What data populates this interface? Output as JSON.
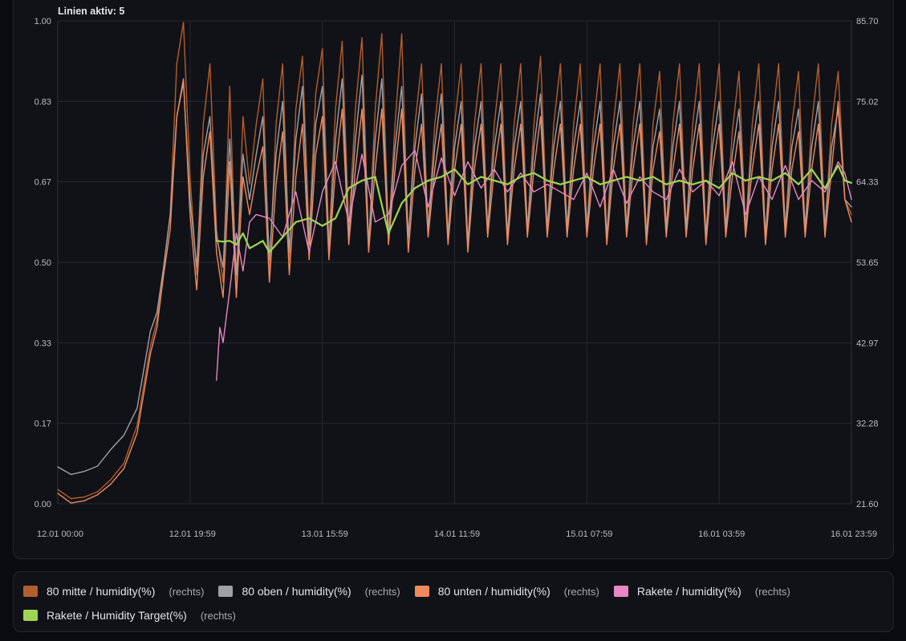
{
  "header": {
    "active_lines": "Linien aktiv: 5"
  },
  "chart_data": {
    "type": "line",
    "title": "",
    "x_tick_labels": [
      "12.01 00:00",
      "12.01 19:59",
      "13.01 15:59",
      "14.01 11:59",
      "15.01 07:59",
      "16.01 03:59",
      "16.01 23:59"
    ],
    "left_axis": {
      "ticks": [
        "1.00",
        "0.83",
        "0.67",
        "0.50",
        "0.33",
        "0.17",
        "0.00"
      ],
      "ylim": [
        0,
        1
      ]
    },
    "right_axis": {
      "ticks": [
        "85.70",
        "75.02",
        "64.33",
        "53.65",
        "42.97",
        "32.28",
        "21.60"
      ],
      "ylim": [
        21.6,
        85.7
      ]
    },
    "grid": true,
    "x_unit": "hours since 12.01 00:00",
    "xlim": [
      0,
      120
    ],
    "series": [
      {
        "name": "80 mitte / humidity(%)",
        "axis_label": "(rechts)",
        "color": "#b35e2e",
        "x": [
          0,
          2,
          4,
          6,
          8,
          10,
          12,
          14,
          15,
          16,
          17,
          18,
          19,
          20,
          21,
          22,
          23,
          24,
          25,
          26,
          27,
          28,
          29,
          30,
          31,
          32,
          33,
          34,
          35,
          36,
          37,
          38,
          39,
          40,
          41,
          42,
          43,
          44,
          45,
          46,
          47,
          48,
          49,
          50,
          51,
          52,
          53,
          54,
          55,
          56,
          57,
          58,
          59,
          60,
          61,
          62,
          63,
          64,
          65,
          66,
          67,
          68,
          69,
          70,
          71,
          72,
          73,
          74,
          75,
          76,
          77,
          78,
          79,
          80,
          81,
          82,
          83,
          84,
          85,
          86,
          87,
          88,
          89,
          90,
          91,
          92,
          93,
          94,
          95,
          96,
          97,
          98,
          99,
          100,
          101,
          102,
          103,
          104,
          105,
          106,
          107,
          108,
          109,
          110,
          111,
          112,
          113,
          114,
          115,
          116,
          117,
          118,
          119,
          120
        ],
        "y": [
          23.5,
          22.3,
          22.5,
          23.2,
          24.8,
          27.0,
          32.0,
          42.5,
          46.0,
          53.0,
          60.0,
          80.0,
          85.5,
          65.0,
          52.0,
          72.0,
          80.0,
          58.0,
          51.0,
          77.0,
          50.0,
          73.0,
          64.0,
          72.0,
          78.0,
          52.0,
          72.0,
          80.0,
          54.0,
          74.0,
          81.0,
          57.0,
          76.0,
          82.0,
          56.0,
          74.0,
          83.0,
          58.0,
          74.0,
          83.5,
          56.0,
          74.0,
          84.0,
          57.0,
          72.0,
          84.0,
          56.0,
          72.0,
          80.0,
          58.0,
          72.0,
          80.0,
          57.0,
          72.0,
          80.0,
          56.0,
          72.0,
          80.0,
          58.0,
          72.0,
          80.0,
          57.0,
          72.0,
          80.0,
          58.0,
          72.0,
          81.0,
          58.0,
          72.0,
          80.0,
          58.0,
          72.0,
          80.0,
          58.0,
          72.0,
          80.0,
          57.0,
          72.0,
          80.0,
          58.0,
          72.0,
          80.0,
          57.0,
          72.0,
          79.0,
          58.0,
          72.0,
          80.0,
          58.0,
          72.0,
          80.0,
          57.0,
          72.0,
          80.0,
          58.0,
          71.0,
          79.0,
          58.0,
          72.0,
          80.0,
          57.0,
          72.0,
          80.0,
          58.0,
          72.0,
          79.0,
          58.0,
          72.0,
          80.0,
          58.0,
          72.0,
          79.0,
          62.0,
          60.0
        ]
      },
      {
        "name": "80 oben / humidity(%)",
        "axis_label": "(rechts)",
        "color": "#9fa1a6",
        "x": [
          0,
          2,
          4,
          6,
          8,
          10,
          12,
          14,
          15,
          16,
          17,
          18,
          19,
          20,
          21,
          22,
          23,
          24,
          25,
          26,
          27,
          28,
          29,
          30,
          31,
          32,
          33,
          34,
          35,
          36,
          37,
          38,
          39,
          40,
          41,
          42,
          43,
          44,
          45,
          46,
          47,
          48,
          49,
          50,
          51,
          52,
          53,
          54,
          55,
          56,
          57,
          58,
          59,
          60,
          61,
          62,
          63,
          64,
          65,
          66,
          67,
          68,
          69,
          70,
          71,
          72,
          73,
          74,
          75,
          76,
          77,
          78,
          79,
          80,
          81,
          82,
          83,
          84,
          85,
          86,
          87,
          88,
          89,
          90,
          91,
          92,
          93,
          94,
          95,
          96,
          97,
          98,
          99,
          100,
          101,
          102,
          103,
          104,
          105,
          106,
          107,
          108,
          109,
          110,
          111,
          112,
          113,
          114,
          115,
          116,
          117,
          118,
          119,
          120
        ],
        "y": [
          26.5,
          25.5,
          25.9,
          26.6,
          28.8,
          30.7,
          34.3,
          44.5,
          47.0,
          53.0,
          60.0,
          73.0,
          77.5,
          62.0,
          53.0,
          68.0,
          73.0,
          57.0,
          53.0,
          70.0,
          52.0,
          68.0,
          62.0,
          68.0,
          73.0,
          54.0,
          68.0,
          75.0,
          55.0,
          70.0,
          77.0,
          56.0,
          72.0,
          77.0,
          55.0,
          70.0,
          78.0,
          57.0,
          70.0,
          78.5,
          56.0,
          70.0,
          78.0,
          57.0,
          69.0,
          77.0,
          57.0,
          69.0,
          76.0,
          58.0,
          69.0,
          76.0,
          57.0,
          69.0,
          75.0,
          56.0,
          69.0,
          75.0,
          58.0,
          69.0,
          75.0,
          57.0,
          69.0,
          75.0,
          58.0,
          69.0,
          76.0,
          58.0,
          69.0,
          75.0,
          58.0,
          69.0,
          75.0,
          58.0,
          69.0,
          75.0,
          57.0,
          69.0,
          75.0,
          58.0,
          69.0,
          75.0,
          57.0,
          69.0,
          74.0,
          58.0,
          69.0,
          75.0,
          58.0,
          69.0,
          75.0,
          57.0,
          69.0,
          75.0,
          58.0,
          68.0,
          74.0,
          58.0,
          69.0,
          75.0,
          57.0,
          69.0,
          75.0,
          58.0,
          69.0,
          74.0,
          58.0,
          69.0,
          75.0,
          58.0,
          69.0,
          74.0,
          62.0,
          61.0
        ]
      },
      {
        "name": "80 unten / humidity(%)",
        "axis_label": "(rechts)",
        "color": "#f08a5d",
        "x": [
          0,
          2,
          4,
          6,
          8,
          10,
          12,
          14,
          15,
          16,
          17,
          18,
          19,
          20,
          21,
          22,
          23,
          24,
          25,
          26,
          27,
          28,
          29,
          30,
          31,
          32,
          33,
          34,
          35,
          36,
          37,
          38,
          39,
          40,
          41,
          42,
          43,
          44,
          45,
          46,
          47,
          48,
          49,
          50,
          51,
          52,
          53,
          54,
          55,
          56,
          57,
          58,
          59,
          60,
          61,
          62,
          63,
          64,
          65,
          66,
          67,
          68,
          69,
          70,
          71,
          72,
          73,
          74,
          75,
          76,
          77,
          78,
          79,
          80,
          81,
          82,
          83,
          84,
          85,
          86,
          87,
          88,
          89,
          90,
          91,
          92,
          93,
          94,
          95,
          96,
          97,
          98,
          99,
          100,
          101,
          102,
          103,
          104,
          105,
          106,
          107,
          108,
          109,
          110,
          111,
          112,
          113,
          114,
          115,
          116,
          117,
          118,
          119,
          120
        ],
        "y": [
          23.0,
          21.7,
          22.0,
          22.8,
          24.2,
          26.3,
          31.0,
          41.5,
          45.0,
          52.0,
          58.0,
          73.0,
          78.0,
          60.0,
          50.0,
          65.0,
          71.0,
          55.0,
          49.0,
          67.0,
          49.0,
          65.0,
          60.0,
          65.0,
          69.0,
          51.0,
          64.0,
          71.0,
          52.0,
          65.0,
          72.0,
          54.0,
          68.0,
          73.0,
          54.0,
          66.0,
          74.0,
          56.0,
          66.0,
          74.0,
          55.0,
          66.0,
          74.0,
          56.0,
          66.0,
          74.0,
          55.0,
          66.0,
          72.0,
          57.0,
          66.0,
          72.0,
          56.0,
          66.0,
          72.0,
          55.0,
          66.0,
          72.0,
          57.0,
          66.0,
          72.0,
          56.0,
          66.0,
          72.0,
          57.0,
          66.0,
          73.0,
          57.0,
          66.0,
          72.0,
          57.0,
          66.0,
          72.0,
          57.0,
          66.0,
          72.0,
          56.0,
          66.0,
          72.0,
          57.0,
          66.0,
          72.0,
          56.0,
          66.0,
          71.0,
          57.0,
          66.0,
          72.0,
          57.0,
          66.0,
          72.0,
          56.0,
          66.0,
          72.0,
          57.0,
          65.0,
          71.0,
          57.0,
          66.0,
          72.0,
          56.0,
          66.0,
          72.0,
          57.0,
          66.0,
          71.0,
          57.0,
          66.0,
          72.0,
          57.0,
          66.0,
          75.0,
          62.0,
          59.0
        ]
      },
      {
        "name": "Rakete / humidity(%)",
        "axis_label": "(rechts)",
        "color": "#e986c6",
        "x": [
          24.0,
          24.5,
          25,
          26,
          27,
          28,
          29,
          30,
          32,
          34,
          36,
          38,
          40,
          42,
          44,
          46,
          48,
          50,
          52,
          54,
          56,
          58,
          60,
          62,
          64,
          66,
          68,
          70,
          72,
          74,
          76,
          78,
          80,
          82,
          84,
          86,
          88,
          90,
          92,
          94,
          96,
          98,
          100,
          102,
          104,
          106,
          108,
          110,
          112,
          114,
          116,
          118,
          119,
          120
        ],
        "y": [
          38.0,
          45.0,
          43.0,
          50.0,
          57.5,
          52.5,
          59.0,
          60.0,
          59.5,
          57.0,
          63.0,
          55.0,
          63.0,
          67.0,
          59.0,
          68.0,
          59.0,
          60.0,
          66.5,
          68.5,
          61.0,
          67.5,
          62.5,
          67.0,
          63.5,
          66.0,
          63.0,
          65.5,
          63.0,
          64.0,
          63.0,
          62.0,
          65.5,
          61.0,
          66.0,
          61.5,
          65.0,
          63.0,
          62.0,
          66.0,
          63.0,
          64.5,
          62.5,
          67.0,
          60.0,
          65.0,
          62.0,
          66.5,
          62.0,
          64.5,
          63.0,
          67.0,
          65.5,
          62.0
        ]
      },
      {
        "name": "Rakete / Humidity Target(%)",
        "axis_label": "(rechts)",
        "color": "#9fd651",
        "x": [
          24.0,
          25,
          26,
          27,
          28,
          29,
          30,
          31,
          32,
          34,
          36,
          38,
          40,
          42,
          44,
          46,
          48,
          50,
          52,
          54,
          56,
          58,
          60,
          62,
          64,
          66,
          68,
          70,
          72,
          74,
          76,
          78,
          80,
          82,
          84,
          86,
          88,
          90,
          92,
          94,
          96,
          98,
          100,
          102,
          104,
          106,
          108,
          110,
          112,
          114,
          116,
          118,
          119,
          120
        ],
        "y": [
          56.5,
          56.4,
          56.5,
          56.0,
          57.5,
          55.5,
          56.0,
          56.5,
          55.0,
          57.0,
          59.0,
          59.5,
          58.5,
          59.5,
          63.5,
          64.5,
          65.0,
          57.5,
          61.5,
          63.5,
          64.5,
          65.0,
          66.0,
          64.0,
          65.0,
          64.5,
          64.0,
          65.0,
          65.5,
          64.5,
          64.0,
          64.5,
          65.0,
          64.0,
          64.5,
          65.0,
          64.5,
          65.0,
          64.0,
          64.5,
          64.0,
          64.5,
          63.5,
          65.5,
          64.5,
          65.0,
          64.5,
          65.5,
          64.0,
          66.0,
          63.5,
          66.5,
          64.5,
          64.2
        ]
      }
    ]
  }
}
